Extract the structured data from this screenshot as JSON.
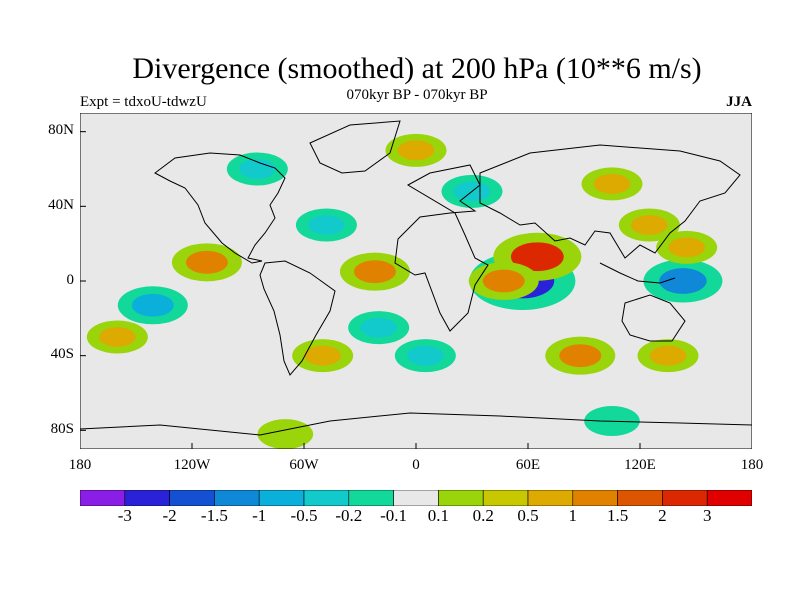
{
  "title": "Divergence (smoothed) at 200 hPa (10**6 m/s)",
  "subtitle": "070kyr BP - 070kyr BP",
  "experiment": "Expt = tdxoU-tdwzU",
  "season": "JJA",
  "y_ticks": [
    "80N",
    "40N",
    "0",
    "40S",
    "80S"
  ],
  "x_ticks": [
    "180",
    "120W",
    "60W",
    "0",
    "60E",
    "120E",
    "180"
  ],
  "colorbar": {
    "labels": [
      "-3",
      "-2",
      "-1.5",
      "-1",
      "-0.5",
      "-0.2",
      "-0.1",
      "0.1",
      "0.2",
      "0.5",
      "1",
      "1.5",
      "2",
      "3"
    ],
    "colors": [
      "#8b1ee6",
      "#2a22d8",
      "#1450d2",
      "#0f88d8",
      "#0ab0da",
      "#12cacc",
      "#12d89a",
      "#e8e8e8",
      "#9ad40a",
      "#c8c800",
      "#dcaa00",
      "#e08200",
      "#dc5500",
      "#dc2800",
      "#e00000"
    ]
  },
  "chart_data": {
    "type": "heatmap",
    "title": "Divergence (smoothed) at 200 hPa (10**6 m/s)",
    "xlabel": "",
    "ylabel": "",
    "xlim": [
      -180,
      180
    ],
    "ylim": [
      -90,
      90
    ],
    "x_ticks": [
      -180,
      -120,
      -60,
      0,
      60,
      120,
      180
    ],
    "y_ticks": [
      80,
      40,
      0,
      -40,
      -80
    ],
    "levels": [
      -3,
      -2,
      -1.5,
      -1,
      -0.5,
      -0.2,
      -0.1,
      0.1,
      0.2,
      0.5,
      1,
      1.5,
      2,
      3
    ],
    "features": [
      {
        "lon": 57,
        "lat": 0,
        "value": -3
      },
      {
        "lon": 65,
        "lat": 13,
        "value": 2
      },
      {
        "lon": 143,
        "lat": 0,
        "value": -1.5
      },
      {
        "lon": 47,
        "lat": 0,
        "value": 1
      },
      {
        "lon": -112,
        "lat": 10,
        "value": 1
      },
      {
        "lon": -141,
        "lat": -13,
        "value": -1
      },
      {
        "lon": -22,
        "lat": 5,
        "value": 1
      },
      {
        "lon": -20,
        "lat": -25,
        "value": -0.5
      },
      {
        "lon": 5,
        "lat": -40,
        "value": -0.5
      },
      {
        "lon": 88,
        "lat": -40,
        "value": 1
      },
      {
        "lon": 125,
        "lat": 30,
        "value": 0.5
      },
      {
        "lon": 145,
        "lat": 18,
        "value": 0.5
      },
      {
        "lon": -48,
        "lat": 30,
        "value": -0.5
      },
      {
        "lon": -85,
        "lat": 60,
        "value": -0.5
      },
      {
        "lon": 30,
        "lat": 48,
        "value": -0.5
      },
      {
        "lon": 0,
        "lat": 70,
        "value": 0.5
      },
      {
        "lon": 105,
        "lat": 52,
        "value": 0.5
      },
      {
        "lon": -160,
        "lat": -30,
        "value": 0.5
      },
      {
        "lon": -50,
        "lat": -40,
        "value": 0.5
      },
      {
        "lon": 135,
        "lat": -40,
        "value": 0.5
      },
      {
        "lon": -70,
        "lat": -82,
        "value": 0.2
      },
      {
        "lon": 105,
        "lat": -75,
        "value": -0.2
      }
    ]
  }
}
